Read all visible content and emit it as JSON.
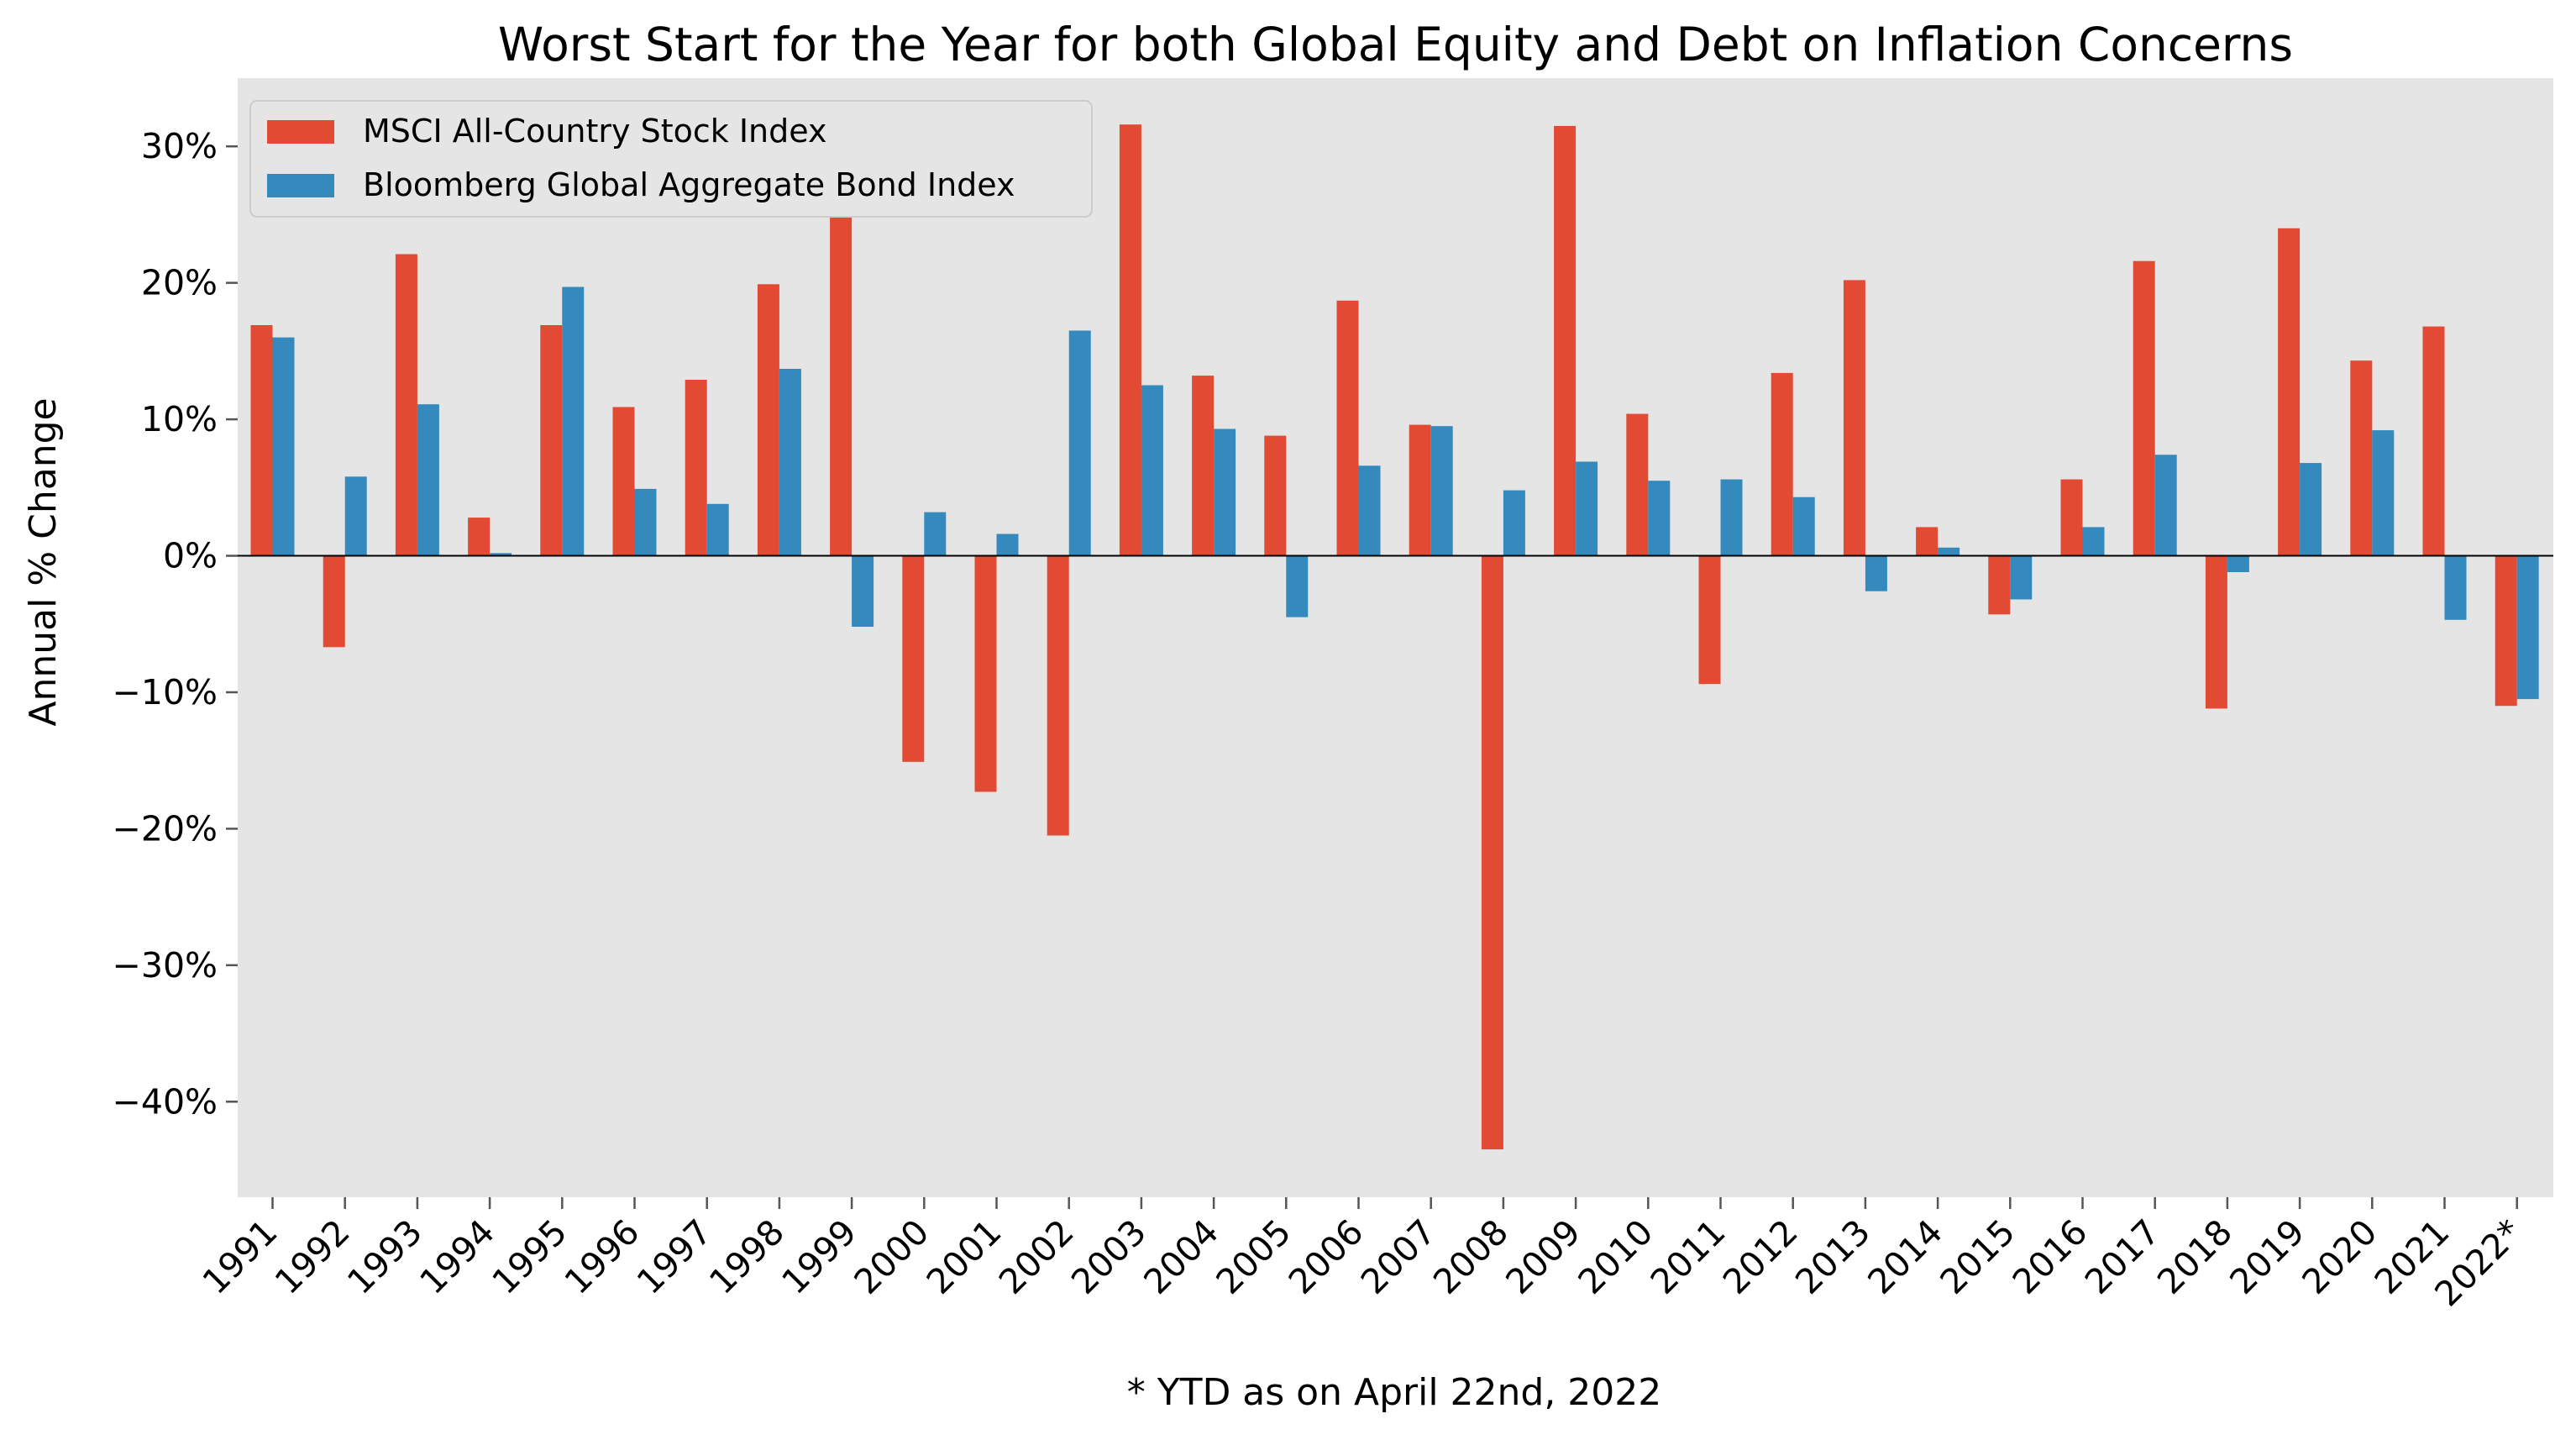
{
  "chart_data": {
    "type": "bar",
    "title": "Worst Start for the Year for both Global Equity and Debt on Inflation Concerns",
    "xlabel": "* YTD as on April 22nd, 2022",
    "ylabel": "Annual % Change",
    "ylim": [
      -47,
      35
    ],
    "yticks": [
      30,
      20,
      10,
      0,
      -10,
      -20,
      -30,
      -40
    ],
    "ytick_labels": [
      "30%",
      "20%",
      "10%",
      "0%",
      "−10%",
      "−20%",
      "−30%",
      "−40%"
    ],
    "grid": false,
    "legend_position": "top-left",
    "categories": [
      "1991",
      "1992",
      "1993",
      "1994",
      "1995",
      "1996",
      "1997",
      "1998",
      "1999",
      "2000",
      "2001",
      "2002",
      "2003",
      "2004",
      "2005",
      "2006",
      "2007",
      "2008",
      "2009",
      "2010",
      "2011",
      "2012",
      "2013",
      "2014",
      "2015",
      "2016",
      "2017",
      "2018",
      "2019",
      "2020",
      "2021",
      "2022*"
    ],
    "series": [
      {
        "name": "MSCI All-Country Stock Index",
        "color": "#E24A33",
        "values": [
          16.9,
          -6.7,
          22.1,
          2.8,
          16.9,
          10.9,
          12.9,
          19.9,
          25.0,
          -15.1,
          -17.3,
          -20.5,
          31.6,
          13.2,
          8.8,
          18.7,
          9.6,
          -43.5,
          31.5,
          10.4,
          -9.4,
          13.4,
          20.2,
          2.1,
          -4.3,
          5.6,
          21.6,
          -11.2,
          24.0,
          14.3,
          16.8,
          -11.0
        ]
      },
      {
        "name": "Bloomberg Global Aggregate Bond Index",
        "color": "#348ABD",
        "values": [
          16.0,
          5.8,
          11.1,
          0.2,
          19.7,
          4.9,
          3.8,
          13.7,
          -5.2,
          3.2,
          1.6,
          16.5,
          12.5,
          9.3,
          -4.5,
          6.6,
          9.5,
          4.8,
          6.9,
          5.5,
          5.6,
          4.3,
          -2.6,
          0.6,
          -3.2,
          2.1,
          7.4,
          -1.2,
          6.8,
          9.2,
          -4.7,
          -10.5
        ]
      }
    ]
  }
}
